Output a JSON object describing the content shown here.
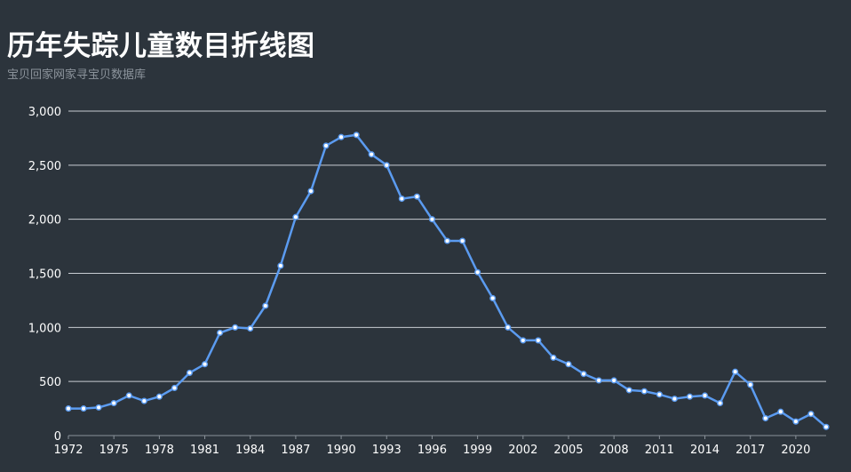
{
  "chart_data": {
    "type": "line",
    "title": "历年失踪儿童数目折线图",
    "subtitle": "宝贝回家网家寻宝贝数据库",
    "xlabel": "",
    "ylabel": "",
    "ylim": [
      0,
      3000
    ],
    "y_ticks": [
      0,
      500,
      1000,
      1500,
      2000,
      2500,
      3000
    ],
    "y_tick_labels": [
      "0",
      "500",
      "1,000",
      "1,500",
      "2,000",
      "2,500",
      "3,000"
    ],
    "x_tick_labels": [
      "1972",
      "1975",
      "1978",
      "1981",
      "1984",
      "1987",
      "1990",
      "1993",
      "1996",
      "1999",
      "2002",
      "2005",
      "2008",
      "2011",
      "2014",
      "2017",
      "2020"
    ],
    "grid": true,
    "line_color": "#5b9bf0",
    "categories": [
      "1972",
      "1973",
      "1974",
      "1975",
      "1976",
      "1977",
      "1978",
      "1979",
      "1980",
      "1981",
      "1982",
      "1983",
      "1984",
      "1985",
      "1986",
      "1987",
      "1988",
      "1989",
      "1990",
      "1991",
      "1992",
      "1993",
      "1994",
      "1995",
      "1996",
      "1997",
      "1998",
      "1999",
      "2000",
      "2001",
      "2002",
      "2003",
      "2004",
      "2005",
      "2006",
      "2007",
      "2008",
      "2009",
      "2010",
      "2011",
      "2012",
      "2013",
      "2014",
      "2015",
      "2016",
      "2017",
      "2018",
      "2019",
      "2020",
      "2021",
      "2022"
    ],
    "values": [
      250,
      250,
      260,
      300,
      370,
      320,
      360,
      440,
      580,
      660,
      950,
      1000,
      990,
      1200,
      1570,
      2020,
      2260,
      2680,
      2760,
      2780,
      2600,
      2500,
      2190,
      2210,
      2000,
      1800,
      1800,
      1510,
      1270,
      1000,
      880,
      880,
      720,
      660,
      570,
      510,
      510,
      420,
      410,
      380,
      340,
      360,
      370,
      300,
      590,
      470,
      160,
      220,
      130,
      200,
      80
    ]
  }
}
